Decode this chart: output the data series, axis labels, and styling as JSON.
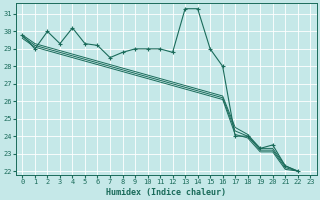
{
  "xlabel": "Humidex (Indice chaleur)",
  "bg_color": "#c5e8e8",
  "grid_color": "#ffffff",
  "line_color": "#1a6b5a",
  "xlim": [
    -0.5,
    23.5
  ],
  "ylim": [
    21.8,
    31.6
  ],
  "xticks": [
    0,
    1,
    2,
    3,
    4,
    5,
    6,
    7,
    8,
    9,
    10,
    11,
    12,
    13,
    14,
    15,
    16,
    17,
    18,
    19,
    20,
    21,
    22,
    23
  ],
  "yticks": [
    22,
    23,
    24,
    25,
    26,
    27,
    28,
    29,
    30,
    31
  ],
  "main_series": [
    29.8,
    29.0,
    30.0,
    29.3,
    30.2,
    29.3,
    29.2,
    28.5,
    28.8,
    29.0,
    29.0,
    29.0,
    28.8,
    31.3,
    31.3,
    29.0,
    28.0,
    24.0,
    24.0,
    23.3,
    23.5,
    22.3,
    22.0,
    null
  ],
  "trend_lines": [
    [
      29.8,
      29.3,
      29.1,
      28.9,
      28.7,
      28.5,
      28.3,
      28.1,
      27.9,
      27.7,
      27.5,
      27.3,
      27.1,
      26.9,
      26.7,
      26.5,
      26.3,
      24.5,
      24.1,
      23.3,
      23.3,
      22.3,
      22.0,
      null
    ],
    [
      29.7,
      29.2,
      29.0,
      28.8,
      28.6,
      28.4,
      28.2,
      28.0,
      27.8,
      27.6,
      27.4,
      27.2,
      27.0,
      26.8,
      26.6,
      26.4,
      26.2,
      24.3,
      24.0,
      23.2,
      23.2,
      22.2,
      22.0,
      null
    ],
    [
      29.6,
      29.1,
      28.9,
      28.7,
      28.5,
      28.3,
      28.1,
      27.9,
      27.7,
      27.5,
      27.3,
      27.1,
      26.9,
      26.7,
      26.5,
      26.3,
      26.1,
      24.1,
      23.9,
      23.1,
      23.1,
      22.1,
      22.0,
      null
    ]
  ],
  "xlabel_fontsize": 6,
  "tick_fontsize": 5,
  "figsize": [
    3.2,
    2.0
  ],
  "dpi": 100
}
